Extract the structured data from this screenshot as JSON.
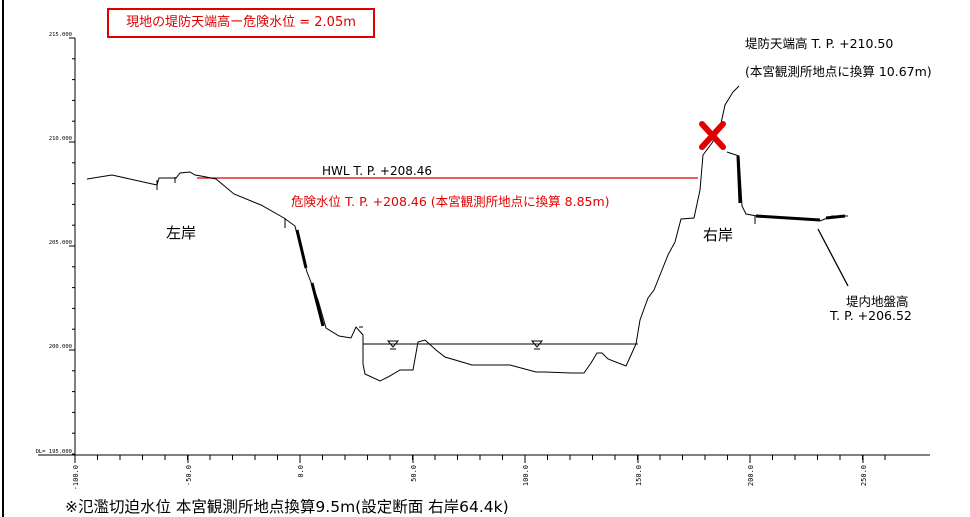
{
  "note_box": "現地の堤防天端高ー危険水位 = 2.05m",
  "labels": {
    "left_bank": "左岸",
    "right_bank": "右岸",
    "hwl": "HWL T. P. +208.46",
    "danger_level": "危険水位 T. P. +208.46 (本宮観測所地点に換算 8.85m)",
    "crest_title": "堤防天端高 T. P. +210.50",
    "crest_sub": "(本宮観測所地点に換算 10.67m)",
    "ground_title": "堤内地盤高",
    "ground_value": "T. P. +206.52",
    "footnote": "※氾濫切迫水位 本宮観測所地点換算9.5m(設定断面 右岸64.4k)"
  },
  "y_ticks": [
    "215.000",
    "210.000",
    "205.000",
    "200.000",
    "DL= 195.000"
  ],
  "x_ticks": [
    "-100.0",
    "-50.0",
    "0.0",
    "50.0",
    "100.0",
    "150.0",
    "200.0",
    "250.0"
  ],
  "colors": {
    "danger": "#e00000",
    "line": "#000000"
  },
  "icons": {
    "crest_marker": "red-x-marker"
  }
}
